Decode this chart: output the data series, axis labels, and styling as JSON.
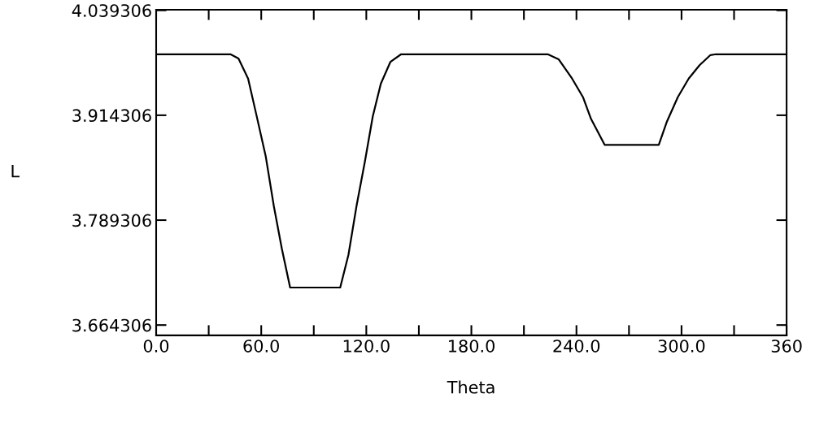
{
  "chart_data": {
    "type": "line",
    "xlabel": "Theta",
    "ylabel": "L",
    "x": [
      0,
      42.4,
      47,
      52.5,
      57.1,
      62.6,
      67.2,
      71.8,
      76.5,
      105.1,
      109.8,
      114.4,
      119.1,
      123.7,
      128.3,
      133.8,
      139.9,
      223.6,
      229.8,
      237.5,
      243.7,
      248.3,
      256.1,
      287.0,
      291.7,
      297.9,
      304.1,
      310.3,
      316.5,
      319.6,
      360
    ],
    "series": [
      {
        "color": "#000000",
        "values": [
          3.987,
          3.987,
          3.982,
          3.958,
          3.916,
          3.865,
          3.806,
          3.755,
          3.709,
          3.709,
          3.748,
          3.806,
          3.858,
          3.913,
          3.952,
          3.978,
          3.987,
          3.987,
          3.981,
          3.958,
          3.936,
          3.91,
          3.879,
          3.879,
          3.907,
          3.936,
          3.958,
          3.974,
          3.986,
          3.987,
          3.987
        ]
      }
    ],
    "xlim": [
      0,
      360
    ],
    "ylim": [
      3.652,
      4.04
    ],
    "xticks": [
      {
        "value": 0,
        "label": "0.0"
      },
      {
        "value": 30,
        "label": null
      },
      {
        "value": 60,
        "label": "60.0"
      },
      {
        "value": 90,
        "label": null
      },
      {
        "value": 120,
        "label": "120.0"
      },
      {
        "value": 150,
        "label": null
      },
      {
        "value": 180,
        "label": "180.0"
      },
      {
        "value": 210,
        "label": null
      },
      {
        "value": 240,
        "label": "240.0"
      },
      {
        "value": 270,
        "label": null
      },
      {
        "value": 300,
        "label": "300.0"
      },
      {
        "value": 330,
        "label": null
      },
      {
        "value": 360,
        "label": "360"
      }
    ],
    "yticks": [
      3.664306,
      3.789306,
      3.914306,
      4.039306
    ],
    "grid": false,
    "marker": "none",
    "line_style": "solid"
  }
}
